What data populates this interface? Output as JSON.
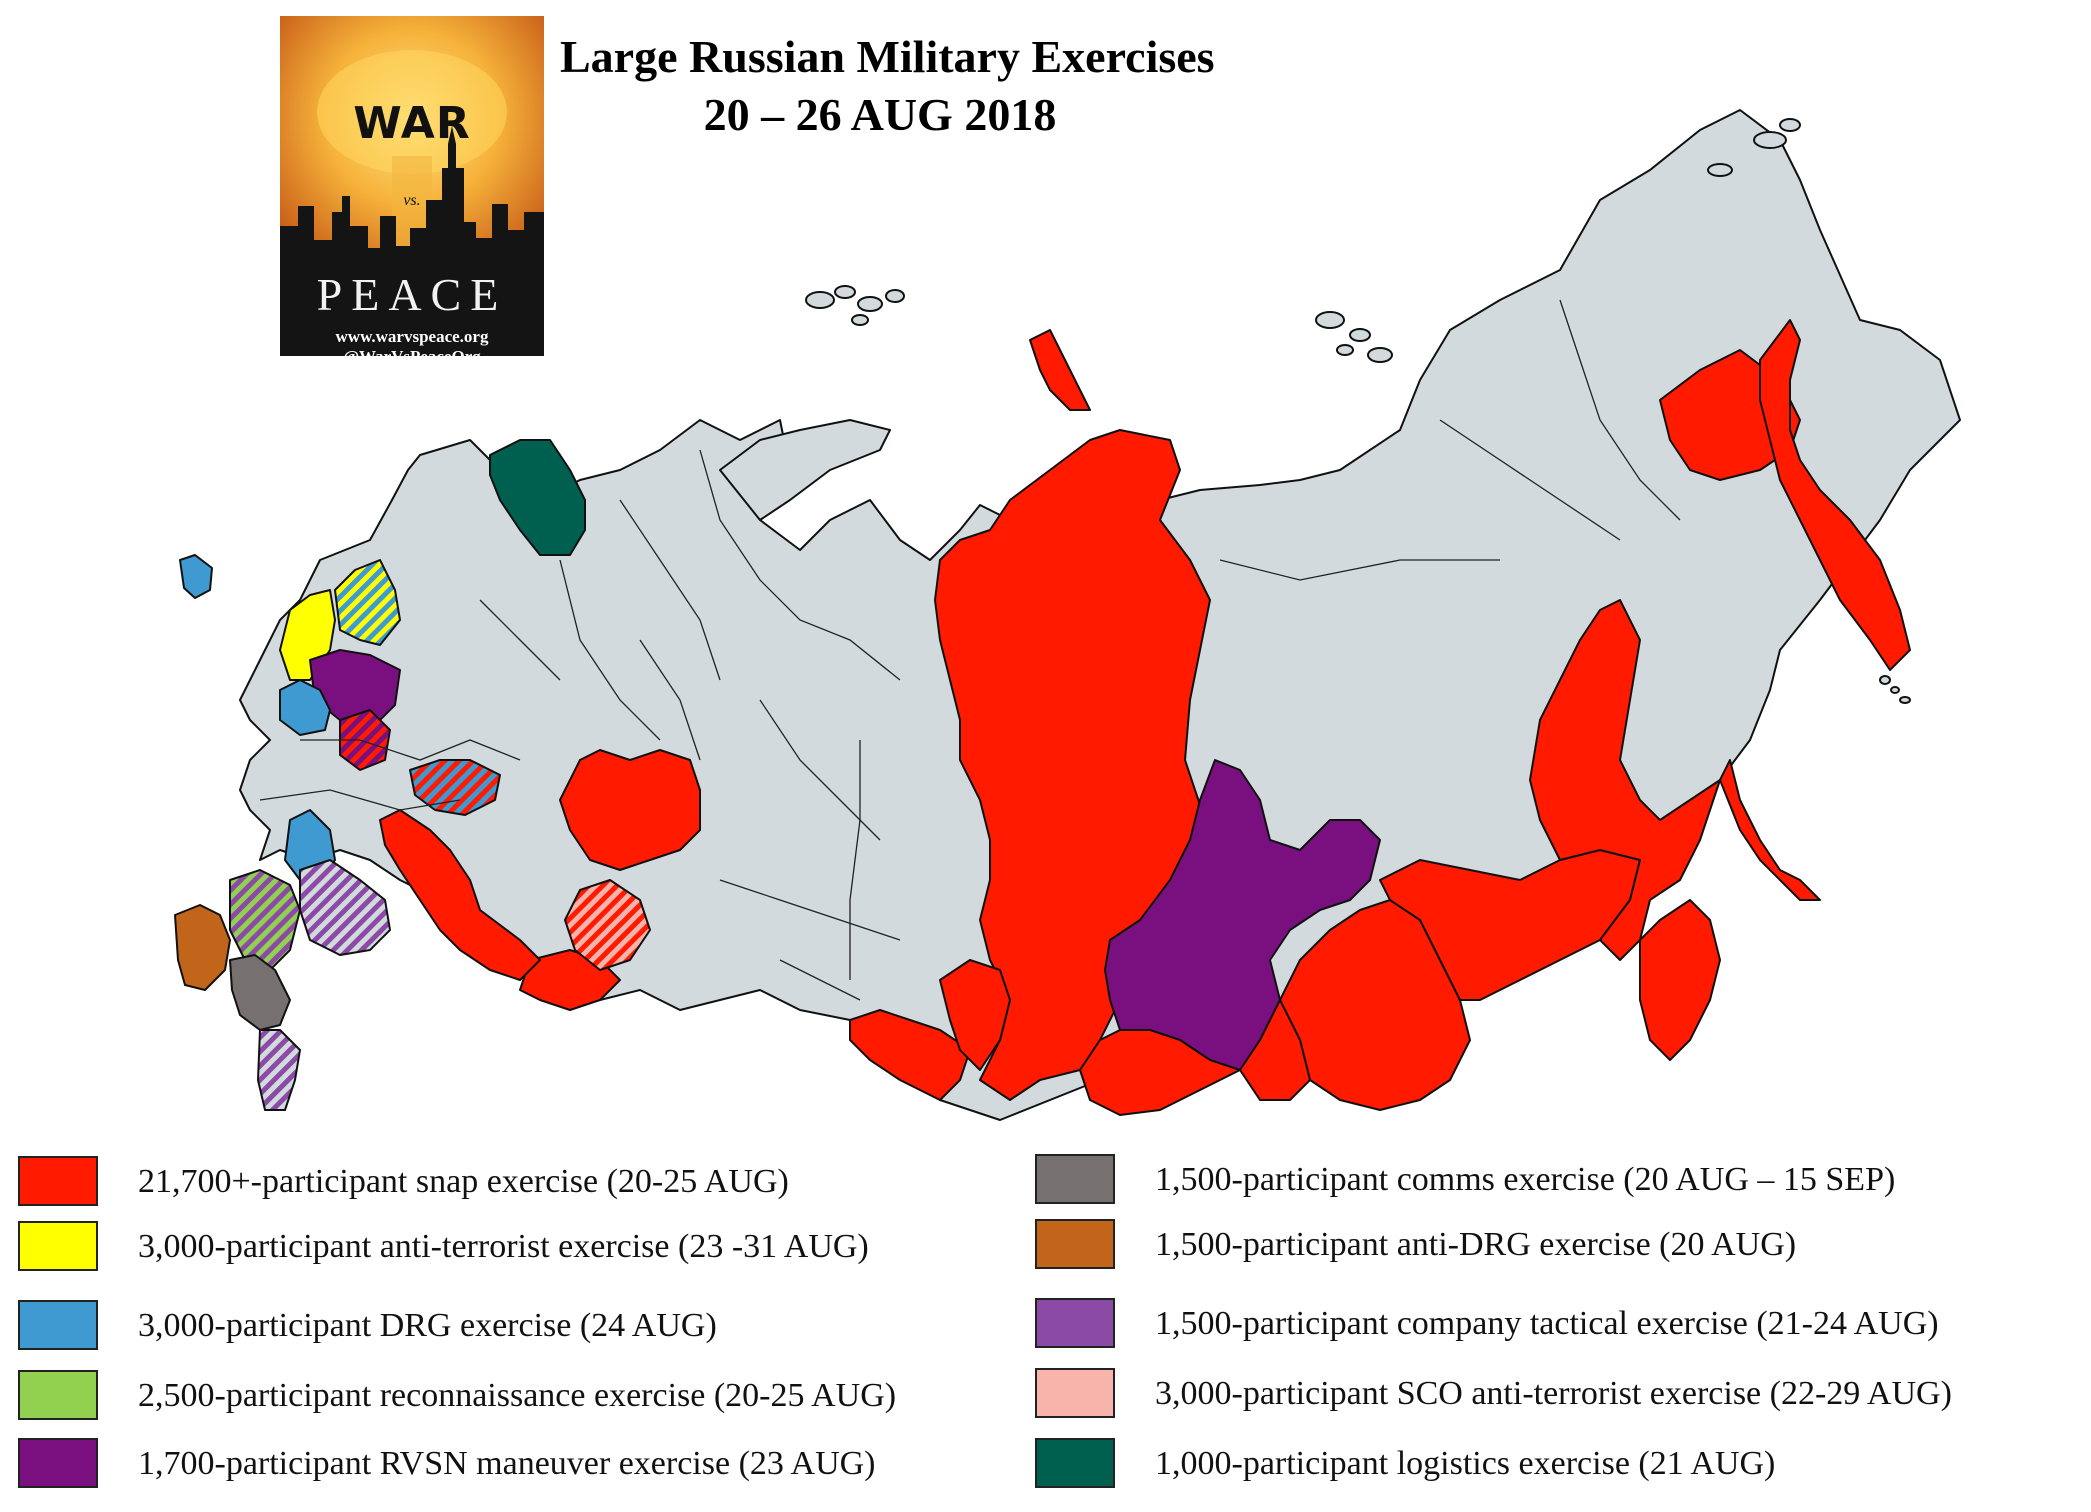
{
  "title": {
    "line1": "Large Russian Military Exercises",
    "line2": "20 – 26 AUG 2018"
  },
  "logo": {
    "war": "WAR",
    "vs": "vs.",
    "peace": "PEACE",
    "url": "www.warvspeace.org",
    "handle": "@WarVsPeaceOrg"
  },
  "colors": {
    "snap": "#ff1a00",
    "anti_terrorist": "#ffff00",
    "drg": "#3e9ad0",
    "reconnaissance": "#92d050",
    "rvsn": "#7a1080",
    "comms": "#777070",
    "anti_drg": "#c0651a",
    "company_tactical": "#8a4aa6",
    "sco": "#f8b4aa",
    "logistics": "#006050",
    "unaffected": "#d3dadd",
    "border": "#111111"
  },
  "legend": {
    "left": [
      {
        "key": "snap",
        "label": "21,700+-participant snap exercise (20-25 AUG)"
      },
      {
        "key": "anti_terrorist",
        "label": "3,000-participant anti-terrorist exercise (23 -31 AUG)"
      },
      {
        "key": "drg",
        "label": "3,000-participant DRG exercise (24 AUG)"
      },
      {
        "key": "reconnaissance",
        "label": "2,500-participant reconnaissance exercise (20-25 AUG)"
      },
      {
        "key": "rvsn",
        "label": "1,700-participant RVSN maneuver exercise (23 AUG)"
      }
    ],
    "right": [
      {
        "key": "comms",
        "label": "1,500-participant comms exercise (20 AUG – 15 SEP)"
      },
      {
        "key": "anti_drg",
        "label": "1,500-participant anti-DRG exercise (20 AUG)"
      },
      {
        "key": "company_tactical",
        "label": "1,500-participant company tactical exercise (21-24 AUG)"
      },
      {
        "key": "sco",
        "label": "3,000-participant SCO anti-terrorist exercise (22-29 AUG)"
      },
      {
        "key": "logistics",
        "label": "1,000-participant logistics exercise (21 AUG)"
      }
    ]
  },
  "regions": [
    {
      "id": "russia-mainland",
      "fill": "unaffected"
    },
    {
      "id": "krasnoyarsk",
      "fill": "snap"
    },
    {
      "id": "irkutsk",
      "fill": "rvsn"
    },
    {
      "id": "zabaykalsky",
      "fill": "snap"
    },
    {
      "id": "buryatia",
      "fill": "snap"
    },
    {
      "id": "tuva",
      "fill": "snap"
    },
    {
      "id": "altai",
      "fill": "snap"
    },
    {
      "id": "khakassia",
      "fill": "snap"
    },
    {
      "id": "amur",
      "fill": "snap"
    },
    {
      "id": "khabarovsk",
      "fill": "snap"
    },
    {
      "id": "primorye",
      "fill": "snap"
    },
    {
      "id": "magadan",
      "fill": "snap"
    },
    {
      "id": "kamchatka",
      "fill": "snap"
    },
    {
      "id": "sakhalin",
      "fill": "snap"
    },
    {
      "id": "severnaya-zemlya",
      "fill": "snap"
    },
    {
      "id": "sverdlovsk",
      "fill": "snap"
    },
    {
      "id": "orenburg",
      "fill": "snap"
    },
    {
      "id": "volga-band",
      "fill": "snap"
    },
    {
      "id": "chelyabinsk",
      "fill": "sco",
      "hatch": "snap"
    },
    {
      "id": "murmansk",
      "fill": "logistics"
    },
    {
      "id": "karelia",
      "fill": "anti_terrorist"
    },
    {
      "id": "leningrad",
      "fill": "anti_terrorist",
      "hatch": "drg"
    },
    {
      "id": "tver",
      "fill": "rvsn"
    },
    {
      "id": "smolensk",
      "fill": "drg"
    },
    {
      "id": "moscow",
      "fill": "snap",
      "hatch": "rvsn"
    },
    {
      "id": "mordovia",
      "fill": "drg",
      "hatch": "snap"
    },
    {
      "id": "voronezh",
      "fill": "drg"
    },
    {
      "id": "rostov",
      "fill": "reconnaissance",
      "hatch": "company_tactical"
    },
    {
      "id": "volgograd",
      "fill": "company_tactical",
      "hatch": "unaffected"
    },
    {
      "id": "crimea",
      "fill": "anti_drg"
    },
    {
      "id": "stavropol",
      "fill": "comms"
    },
    {
      "id": "dagestan",
      "fill": "company_tactical",
      "hatch": "unaffected"
    },
    {
      "id": "kaliningrad",
      "fill": "drg"
    }
  ]
}
